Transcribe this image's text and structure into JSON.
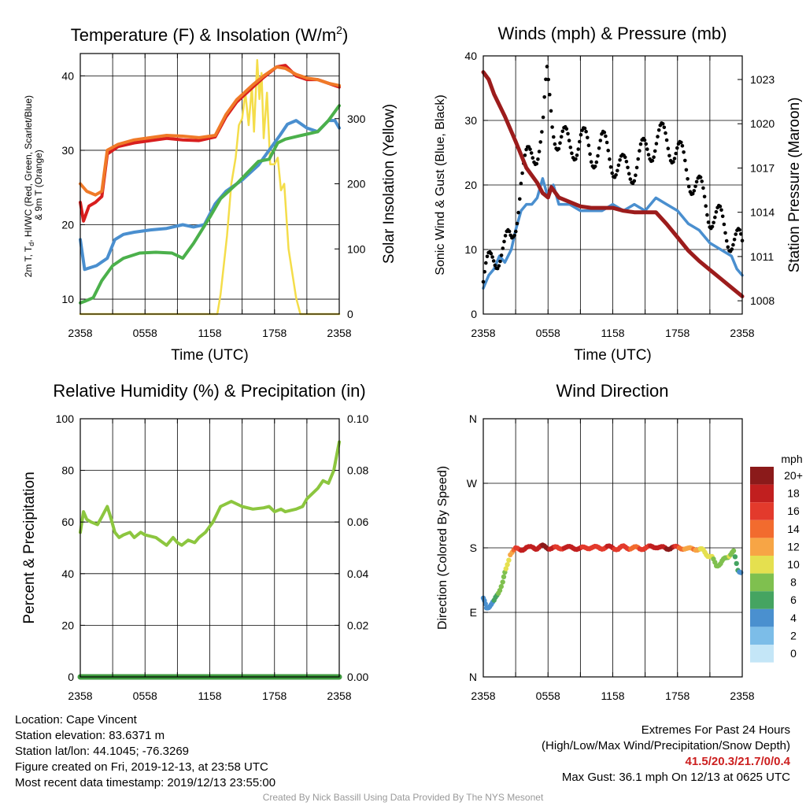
{
  "chart_data": [
    {
      "type": "line",
      "title": "Temperature (F) & Insolation (W/m²)",
      "xlabel": "Time (UTC)",
      "ylabel": "2m T, Td, HI/WC (Red, Green, Scarlet/Blue) & 9m T (Orange)",
      "ylabel_right": "Solar Insolation (Yellow)",
      "x_tick_labels": [
        "2358",
        "0558",
        "1158",
        "1758",
        "2358"
      ],
      "xlim_hours": [
        0,
        24
      ],
      "ylim": [
        8,
        43
      ],
      "yticks": [
        10,
        20,
        30,
        40
      ],
      "ylim_right": [
        0,
        400
      ],
      "yticks_right": [
        0,
        100,
        200,
        300
      ],
      "series": [
        {
          "color": "#d81e1e",
          "x": [
            0,
            0.3,
            0.8,
            1.4,
            2.0,
            2.5,
            3.5,
            5,
            6.5,
            8,
            9.5,
            11,
            12.5,
            13.5,
            14.5,
            16,
            17,
            18.2,
            19,
            20,
            21,
            22,
            23,
            24
          ],
          "values": [
            23,
            20.5,
            22.5,
            23,
            23.8,
            29.5,
            30.5,
            31,
            31.3,
            31.6,
            31.4,
            31.3,
            31.8,
            34.5,
            36.5,
            38.5,
            39.8,
            41.2,
            41.4,
            40,
            39.5,
            39.5,
            39,
            38.5
          ]
        },
        {
          "color": "#f07a28",
          "x": [
            0,
            0.6,
            1.4,
            2.0,
            2.5,
            3.5,
            5,
            6.5,
            8,
            9.5,
            11,
            12.5,
            13.5,
            14.5,
            16,
            17,
            18.2,
            19,
            20,
            21,
            22,
            23,
            24
          ],
          "values": [
            25.5,
            24.5,
            24,
            24.5,
            30,
            30.8,
            31.4,
            31.7,
            32,
            31.9,
            31.7,
            32,
            34.8,
            36.8,
            38.8,
            40,
            41.2,
            41,
            40.2,
            39.7,
            39.5,
            39,
            38.7
          ]
        },
        {
          "color": "#4a8fcf",
          "x": [
            0,
            0.4,
            1.5,
            2.5,
            3.2,
            4,
            5,
            6.5,
            8,
            9.5,
            10.5,
            11.5,
            12.5,
            13.5,
            15,
            16.5,
            17.5,
            18.5,
            19.2,
            20,
            21,
            22,
            23,
            23.6,
            24
          ],
          "values": [
            18,
            14,
            14.5,
            15.5,
            18,
            18.7,
            19,
            19.3,
            19.5,
            20,
            19.7,
            20,
            22.8,
            24.5,
            26,
            28,
            30,
            32,
            33.5,
            34,
            33,
            32.5,
            34,
            34,
            33
          ]
        },
        {
          "color": "#4bb04b",
          "x": [
            0,
            0.4,
            1.2,
            2.0,
            3.0,
            4.0,
            5.5,
            7,
            8.5,
            9.5,
            10.5,
            12,
            13,
            14.5,
            15.5,
            16.5,
            17.5,
            18.3,
            19,
            20.5,
            22,
            23,
            24
          ],
          "values": [
            9.5,
            9.7,
            10.2,
            12.5,
            14.5,
            15.5,
            16.2,
            16.3,
            16.2,
            15.5,
            17.5,
            21,
            23.5,
            25.5,
            27,
            28.5,
            28.8,
            31,
            31.5,
            32,
            32.5,
            34,
            36
          ]
        }
      ],
      "insolation": {
        "color": "#f4dd4a",
        "x": [
          0,
          12.7,
          13,
          13.6,
          14,
          14.4,
          14.7,
          15,
          15.3,
          15.6,
          15.9,
          16.1,
          16.4,
          16.6,
          16.8,
          17,
          17.3,
          17.6,
          18,
          18.3,
          18.6,
          18.9,
          19.3,
          20,
          20.4,
          24
        ],
        "values": [
          0,
          0,
          30,
          120,
          200,
          240,
          290,
          300,
          340,
          290,
          350,
          280,
          390,
          330,
          370,
          270,
          340,
          230,
          230,
          240,
          190,
          200,
          100,
          25,
          0,
          0
        ]
      }
    },
    {
      "type": "line",
      "title": "Winds (mph) & Pressure (mb)",
      "xlabel": "Time (UTC)",
      "ylabel": "Sonic Wind & Gust (Blue, Black)",
      "ylabel_right": "Station Pressure (Maroon)",
      "x_tick_labels": [
        "2358",
        "0558",
        "1158",
        "1758",
        "2358"
      ],
      "xlim_hours": [
        0,
        24
      ],
      "ylim": [
        0,
        40
      ],
      "yticks": [
        0,
        10,
        20,
        30,
        40
      ],
      "ylim_right": [
        1007.1,
        1024.6
      ],
      "yticks_right": [
        1008,
        1011,
        1014,
        1017,
        1020,
        1023
      ],
      "series": [
        {
          "name": "wind",
          "color": "#4a8fcf",
          "x": [
            0,
            0.5,
            1,
            1.5,
            2,
            2.6,
            3,
            3.5,
            4,
            4.5,
            5,
            5.5,
            6,
            6.5,
            7,
            8,
            9,
            10,
            11,
            12,
            13,
            14,
            15,
            16,
            17,
            18,
            19,
            20,
            21,
            22,
            23,
            23.5,
            24
          ],
          "values": [
            4,
            6,
            7,
            9,
            8,
            10,
            13,
            16,
            17,
            17,
            18,
            21,
            18,
            20,
            17,
            17,
            16,
            16,
            16,
            17,
            16,
            17,
            16,
            18,
            17,
            16,
            14,
            13,
            11,
            10,
            9,
            7,
            6
          ]
        },
        {
          "name": "gust",
          "color": "#000000",
          "x": [
            0,
            0.5,
            1,
            1.5,
            2,
            2.6,
            3,
            3.5,
            4,
            4.5,
            5,
            5.5,
            5.9,
            6.4,
            7,
            8,
            9,
            10,
            11,
            12,
            13,
            14,
            15,
            16,
            17,
            18,
            19,
            20,
            21,
            22,
            23,
            23.5,
            24
          ],
          "values": [
            5,
            7,
            9,
            10,
            10,
            11,
            15,
            21,
            23,
            25,
            26,
            28,
            36,
            30,
            27,
            26,
            27,
            25,
            26,
            24,
            22,
            23,
            25,
            27,
            27,
            25,
            22,
            19,
            16,
            14,
            12,
            11,
            10
          ]
        },
        {
          "name": "pressure",
          "color": "#9c1c1c",
          "x": [
            0,
            0.5,
            1,
            2,
            3,
            4,
            5,
            5.5,
            6,
            6.3,
            7,
            8,
            9,
            10,
            11,
            12,
            13,
            14,
            15,
            16,
            17,
            18,
            19,
            20,
            21,
            22,
            23,
            24
          ],
          "values": [
            1023.5,
            1023,
            1022,
            1020.5,
            1018.8,
            1017,
            1016,
            1015.3,
            1015,
            1015.7,
            1015,
            1014.7,
            1014.4,
            1014.3,
            1014.3,
            1014.3,
            1014.1,
            1014,
            1014,
            1014,
            1013.2,
            1012.3,
            1011.4,
            1010.7,
            1010.1,
            1009.5,
            1008.9,
            1008.3
          ]
        }
      ]
    },
    {
      "type": "line",
      "title": "Relative Humidity (%) & Precipitation (in)",
      "ylabel": "Percent & Precipitation",
      "x_tick_labels": [
        "2358",
        "0558",
        "1158",
        "1758",
        "2358"
      ],
      "xlim_hours": [
        0,
        24
      ],
      "ylim": [
        0,
        100
      ],
      "yticks": [
        0,
        20,
        40,
        60,
        80,
        100
      ],
      "ylim_right": [
        0,
        0.1
      ],
      "yticks_right": [
        "0.00",
        "0.02",
        "0.04",
        "0.06",
        "0.08",
        "0.10"
      ],
      "series": [
        {
          "name": "rh",
          "color": "#8cc63f",
          "x": [
            0,
            0.3,
            0.6,
            1,
            1.6,
            2,
            2.5,
            2.8,
            3.2,
            3.6,
            4,
            4.6,
            5,
            5.6,
            6,
            7,
            8,
            8.6,
            9,
            9.4,
            10,
            10.6,
            11,
            11.6,
            12.3,
            13,
            14,
            15,
            16,
            17,
            17.5,
            18,
            18.6,
            19,
            20,
            20.6,
            21,
            22,
            22.5,
            23,
            23.5,
            24
          ],
          "values": [
            56,
            64,
            61,
            60,
            59,
            62,
            66,
            62,
            56,
            54,
            55,
            56,
            54,
            56,
            55,
            54,
            51,
            54,
            52,
            51,
            53,
            52,
            54,
            56,
            60,
            66,
            68,
            66,
            65,
            65.5,
            66,
            64,
            65,
            64,
            65,
            66,
            69,
            73,
            76,
            75,
            80,
            91
          ]
        },
        {
          "name": "precip",
          "color": "#3f9a3f",
          "x": [
            0,
            24
          ],
          "values": [
            0,
            0
          ]
        }
      ]
    },
    {
      "type": "scatter",
      "title": "Wind Direction",
      "ylabel": "Direction (Colored By Speed)",
      "x_tick_labels": [
        "2358",
        "0558",
        "1158",
        "1758",
        "2358"
      ],
      "xlim_hours": [
        0,
        24
      ],
      "y_tick_labels": [
        "N",
        "E",
        "S",
        "W",
        "N"
      ],
      "ylim_degrees": [
        0,
        360
      ],
      "colorbar": {
        "title": "mph",
        "labels": [
          "20+",
          "18",
          "16",
          "14",
          "12",
          "10",
          "8",
          "6",
          "4",
          "2",
          "0"
        ],
        "colors": [
          "#8b1a1a",
          "#c11f1f",
          "#e33a2c",
          "#f26b2e",
          "#f7a545",
          "#e5e04f",
          "#7fc04f",
          "#45a461",
          "#4a90cf",
          "#7cbde8",
          "#c4e6f7"
        ]
      },
      "x": [
        0,
        0.3,
        0.6,
        1,
        1.4,
        1.8,
        2.1,
        2.5,
        3,
        3.5,
        4,
        4.6,
        5,
        5.5,
        6,
        6.5,
        7,
        7.5,
        8,
        8.5,
        9,
        9.5,
        10,
        10.5,
        11,
        11.5,
        12,
        12.5,
        13,
        13.5,
        14,
        14.5,
        15,
        15.5,
        16,
        16.5,
        17,
        17.5,
        18,
        18.5,
        19,
        19.5,
        20,
        20.4,
        20.8,
        21.2,
        21.6,
        22,
        22.4,
        22.8,
        23.2,
        23.6,
        24
      ],
      "values": [
        110,
        95,
        100,
        105,
        118,
        132,
        150,
        172,
        178,
        178,
        180,
        180,
        180,
        182,
        180,
        180,
        179,
        181,
        180,
        180,
        179,
        180,
        181,
        180,
        180,
        181,
        180,
        179,
        181,
        180,
        180,
        179,
        180,
        181,
        182,
        180,
        179,
        181,
        180,
        180,
        178,
        179,
        178,
        176,
        170,
        166,
        156,
        158,
        165,
        170,
        174,
        150,
        145
      ],
      "speeds": [
        4,
        4,
        4,
        6,
        8,
        8,
        10,
        12,
        16,
        18,
        18,
        18,
        18,
        20,
        20,
        18,
        16,
        18,
        18,
        18,
        18,
        16,
        16,
        16,
        16,
        18,
        18,
        16,
        16,
        16,
        14,
        16,
        16,
        18,
        18,
        18,
        20,
        20,
        16,
        14,
        12,
        14,
        12,
        10,
        10,
        10,
        8,
        8,
        8,
        10,
        8,
        6,
        4
      ]
    }
  ],
  "footer": {
    "location": "Location: Cape Vincent",
    "elevation": "Station elevation: 83.6371 m",
    "latlon": "Station lat/lon: 44.1045; -76.3269",
    "created": "Figure created on Fri, 2019-12-13, at 23:58 UTC",
    "timestamp": "Most recent data timestamp: 2019/12/13 23:55:00",
    "extremes_title": "Extremes For Past 24 Hours",
    "extremes_sub": "(High/Low/Max Wind/Precipitation/Snow Depth)",
    "extremes_values": "41.5/20.3/21.7/0/0.4",
    "max_gust": "Max Gust: 36.1 mph On 12/13 at 0625 UTC",
    "credit": "Created By Nick Bassill Using Data Provided By The NYS Mesonet"
  }
}
